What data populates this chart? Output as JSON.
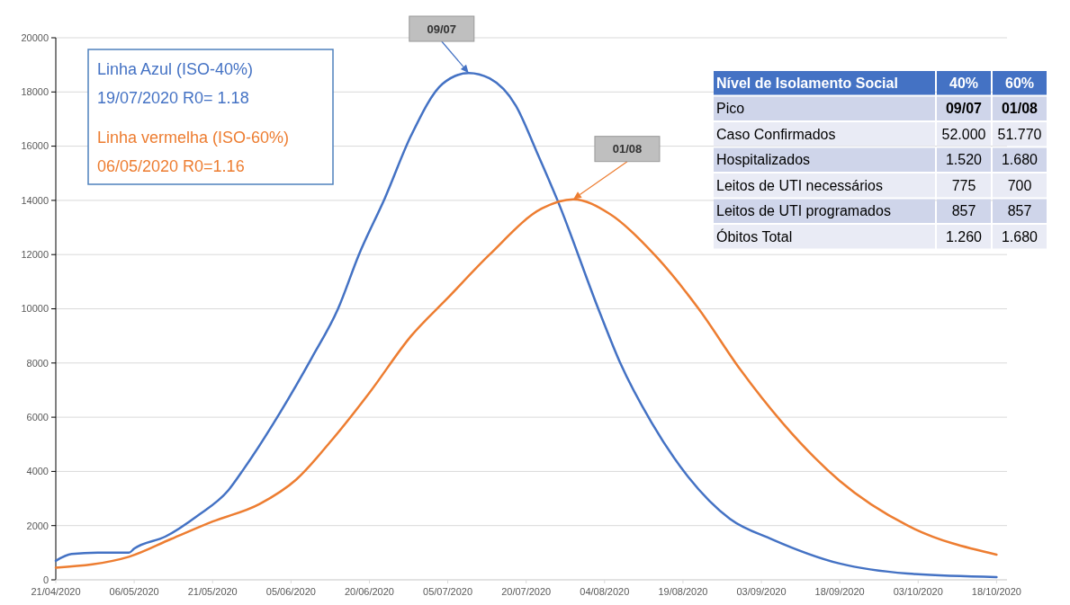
{
  "chart_data": {
    "type": "line",
    "grid": "y",
    "legend": "top left",
    "line_style": "solid",
    "marker": "none",
    "xlim": [
      "2020-04-21",
      "2020-10-20"
    ],
    "xticks": [
      {
        "value": "2020-04-21",
        "label": "21/04/2020"
      },
      {
        "value": "2020-05-06",
        "label": "06/05/2020"
      },
      {
        "value": "2020-05-21",
        "label": "21/05/2020"
      },
      {
        "value": "2020-06-05",
        "label": "05/06/2020"
      },
      {
        "value": "2020-06-20",
        "label": "20/06/2020"
      },
      {
        "value": "2020-07-05",
        "label": "05/07/2020"
      },
      {
        "value": "2020-07-20",
        "label": "20/07/2020"
      },
      {
        "value": "2020-08-04",
        "label": "04/08/2020"
      },
      {
        "value": "2020-08-19",
        "label": "19/08/2020"
      },
      {
        "value": "2020-09-03",
        "label": "03/09/2020"
      },
      {
        "value": "2020-09-18",
        "label": "18/09/2020"
      },
      {
        "value": "2020-10-03",
        "label": "03/10/2020"
      },
      {
        "value": "2020-10-18",
        "label": "18/10/2020"
      }
    ],
    "ylim": [
      0,
      20000
    ],
    "yticks": [
      0,
      2000,
      4000,
      6000,
      8000,
      10000,
      12000,
      14000,
      16000,
      18000,
      20000
    ],
    "series": [
      {
        "name": "Linha Azul (ISO-40%)",
        "color": "#4472c4",
        "x": [
          "2020-04-21",
          "2020-04-24",
          "2020-04-29",
          "2020-05-05",
          "2020-05-06",
          "2020-05-12",
          "2020-05-18",
          "2020-05-24",
          "2020-05-27",
          "2020-06-03",
          "2020-06-09",
          "2020-06-14",
          "2020-06-18",
          "2020-06-23",
          "2020-06-28",
          "2020-07-04",
          "2020-07-09",
          "2020-07-13",
          "2020-07-18",
          "2020-07-22",
          "2020-07-26",
          "2020-08-03",
          "2020-08-07",
          "2020-08-13",
          "2020-08-20",
          "2020-08-28",
          "2020-09-05",
          "2020-09-18",
          "2020-10-01",
          "2020-10-18"
        ],
        "values": [
          700,
          950,
          1000,
          1000,
          1150,
          1600,
          2350,
          3300,
          4100,
          6200,
          8200,
          10000,
          12000,
          14100,
          16400,
          18300,
          18700,
          18500,
          17500,
          15800,
          14000,
          9900,
          8000,
          5800,
          3800,
          2250,
          1500,
          600,
          230,
          100
        ]
      },
      {
        "name": "Linha vermelha (ISO-60%)",
        "color": "#ed7d31",
        "x": [
          "2020-04-21",
          "2020-05-05",
          "2020-05-13",
          "2020-05-21",
          "2020-05-30",
          "2020-06-06",
          "2020-06-13",
          "2020-06-20",
          "2020-06-28",
          "2020-07-05",
          "2020-07-13",
          "2020-07-23",
          "2020-07-29",
          "2020-08-05",
          "2020-08-14",
          "2020-08-22",
          "2020-08-30",
          "2020-09-07",
          "2020-09-18",
          "2020-10-01",
          "2020-10-18"
        ],
        "values": [
          450,
          850,
          1500,
          2150,
          2800,
          3700,
          5200,
          6900,
          9000,
          10400,
          12000,
          13700,
          14040,
          13500,
          11900,
          10000,
          7750,
          5800,
          3650,
          2000,
          930
        ]
      }
    ],
    "annotations": [
      "19/07/2020 R0= 1.18",
      "06/05/2020 R0=1.16",
      "09/07",
      "01/08",
      "Nível de Isolamento Social",
      "40%",
      "60%",
      "Pico",
      "09/07",
      "01/08",
      "Caso Confirmados",
      "52.000",
      "51.770",
      "Hospitalizados",
      "1.520",
      "1.680",
      "Leitos de UTI necessários",
      "775",
      "700",
      "Leitos de UTI programados",
      "857",
      "857",
      "Óbitos Total",
      "1.260",
      "1.680"
    ]
  }
}
